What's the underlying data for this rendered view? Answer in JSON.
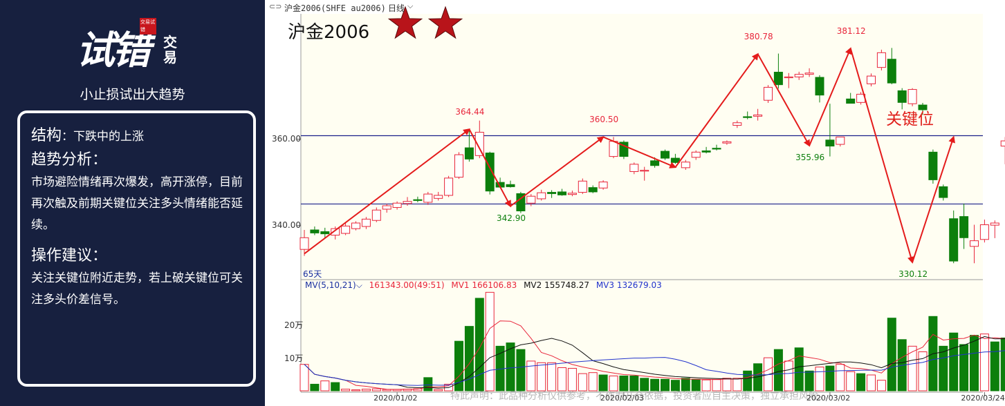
{
  "brand": {
    "logo_main": "试错",
    "logo_sub": "交易",
    "seal_text": "交易试错",
    "slogan": "小止损试出大趋势"
  },
  "analysis": {
    "structure_label": "结构",
    "structure_colon": "：",
    "structure_value": "下跌中的上涨",
    "trend_label": "趋势分析：",
    "trend_text": "市场避险情绪再次爆发，高开涨停，目前再次触及前期关键位关注多头情绪能否延续。",
    "ops_label": "操作建议：",
    "ops_text": "关注关键位附近走势，若上破关键位可关注多头价差信号。"
  },
  "chart_header": {
    "link_icon": "link-icon",
    "title": "沪金2006(SHFE au2006)",
    "period": "日线",
    "dropdown_icon": "chevron-down-icon",
    "big_title": "沪金2006",
    "stars": 2,
    "star_color": "#b8141a",
    "keyword": "关键位",
    "days_label": "65天",
    "disclaimer": "特此声明：此品种分析仅供参考，不作为开仓依据，投资者应自主决策，独立承担风险。"
  },
  "volume_header": {
    "indicator": "MV(5,10,21)",
    "current": "161343.00(49:51)",
    "mv1": "MV1 166106.83",
    "mv2": "MV2 155748.27",
    "mv3": "MV3 132679.03"
  },
  "colors": {
    "panel_bg": "#17203f",
    "up": "#e8253a",
    "down": "#0c7f0c",
    "arrow": "#e41b1b",
    "level_line": "#1a1f8a",
    "chart_bg": "#fffef2",
    "mv1": "#e8253a",
    "mv2": "#111111",
    "mv3": "#2233cc"
  },
  "chart_data": [
    {
      "type": "candlestick",
      "title": "沪金2006",
      "y_ticks": [
        340.0,
        360.0
      ],
      "ylim": [
        327.5,
        389
      ],
      "x_ticks": [
        "2020/01/02",
        "2020/02/03",
        "2020/03/02",
        "2020/03/24"
      ],
      "key_levels": [
        360.8,
        345.0
      ],
      "swing_points": [
        {
          "index": 0,
          "price": 333.5,
          "label": ""
        },
        {
          "index": 16,
          "price": 362.3,
          "label": "364.44"
        },
        {
          "index": 20,
          "price": 344.5,
          "label": "342.90"
        },
        {
          "index": 29,
          "price": 360.5,
          "label": "360.50"
        },
        {
          "index": 36,
          "price": 353.5,
          "label": ""
        },
        {
          "index": 44,
          "price": 379.7,
          "label": "380.78"
        },
        {
          "index": 49,
          "price": 358.5,
          "label": "355.96"
        },
        {
          "index": 53,
          "price": 381.0,
          "label": "381.12"
        },
        {
          "index": 59,
          "price": 331.5,
          "label": "330.12"
        },
        {
          "index": 63,
          "price": 360.5,
          "label": ""
        }
      ],
      "candles": [
        {
          "o": 334.5,
          "h": 339.0,
          "l": 333.0,
          "c": 337.2
        },
        {
          "o": 339.0,
          "h": 339.8,
          "l": 337.8,
          "c": 338.3
        },
        {
          "o": 338.6,
          "h": 339.5,
          "l": 337.0,
          "c": 338.1
        },
        {
          "o": 337.8,
          "h": 339.8,
          "l": 336.8,
          "c": 339.3
        },
        {
          "o": 338.2,
          "h": 340.6,
          "l": 337.8,
          "c": 339.9
        },
        {
          "o": 339.3,
          "h": 341.0,
          "l": 338.9,
          "c": 340.6
        },
        {
          "o": 339.8,
          "h": 342.0,
          "l": 339.2,
          "c": 341.5
        },
        {
          "o": 341.2,
          "h": 344.2,
          "l": 340.8,
          "c": 343.6
        },
        {
          "o": 343.8,
          "h": 345.0,
          "l": 343.0,
          "c": 344.6
        },
        {
          "o": 344.2,
          "h": 345.6,
          "l": 343.7,
          "c": 345.2
        },
        {
          "o": 345.1,
          "h": 346.6,
          "l": 344.6,
          "c": 345.6
        },
        {
          "o": 346.0,
          "h": 346.7,
          "l": 345.4,
          "c": 345.9
        },
        {
          "o": 345.4,
          "h": 347.8,
          "l": 344.8,
          "c": 347.3
        },
        {
          "o": 346.3,
          "h": 347.8,
          "l": 345.8,
          "c": 347.0
        },
        {
          "o": 347.0,
          "h": 351.5,
          "l": 346.6,
          "c": 351.0
        },
        {
          "o": 351.2,
          "h": 357.0,
          "l": 350.8,
          "c": 356.4
        },
        {
          "o": 358.0,
          "h": 362.2,
          "l": 354.8,
          "c": 355.4
        },
        {
          "o": 356.2,
          "h": 364.3,
          "l": 355.6,
          "c": 361.6
        },
        {
          "o": 356.8,
          "h": 357.1,
          "l": 347.2,
          "c": 348.0
        },
        {
          "o": 350.0,
          "h": 351.1,
          "l": 348.7,
          "c": 348.9
        },
        {
          "o": 349.5,
          "h": 350.4,
          "l": 348.8,
          "c": 349.0
        },
        {
          "o": 347.4,
          "h": 347.8,
          "l": 342.9,
          "c": 343.4
        },
        {
          "o": 345.2,
          "h": 347.3,
          "l": 344.5,
          "c": 346.8
        },
        {
          "o": 346.2,
          "h": 348.3,
          "l": 345.8,
          "c": 347.6
        },
        {
          "o": 347.7,
          "h": 348.2,
          "l": 346.4,
          "c": 347.4
        },
        {
          "o": 347.8,
          "h": 348.5,
          "l": 346.9,
          "c": 347.1
        },
        {
          "o": 347.2,
          "h": 348.1,
          "l": 346.8,
          "c": 347.5
        },
        {
          "o": 347.7,
          "h": 350.9,
          "l": 347.3,
          "c": 350.3
        },
        {
          "o": 348.8,
          "h": 349.3,
          "l": 347.5,
          "c": 347.8
        },
        {
          "o": 348.7,
          "h": 350.5,
          "l": 348.3,
          "c": 350.1
        },
        {
          "o": 356.0,
          "h": 360.5,
          "l": 355.6,
          "c": 359.5
        },
        {
          "o": 359.3,
          "h": 359.7,
          "l": 355.4,
          "c": 356.0
        },
        {
          "o": 352.5,
          "h": 354.6,
          "l": 351.9,
          "c": 354.2
        },
        {
          "o": 352.6,
          "h": 353.6,
          "l": 350.4,
          "c": 352.8
        },
        {
          "o": 355.0,
          "h": 355.8,
          "l": 353.4,
          "c": 353.9
        },
        {
          "o": 357.2,
          "h": 357.6,
          "l": 355.2,
          "c": 355.6
        },
        {
          "o": 355.6,
          "h": 356.6,
          "l": 354.3,
          "c": 354.6
        },
        {
          "o": 353.4,
          "h": 355.2,
          "l": 352.9,
          "c": 354.7
        },
        {
          "o": 355.8,
          "h": 357.4,
          "l": 355.2,
          "c": 357.0
        },
        {
          "o": 357.3,
          "h": 358.2,
          "l": 356.7,
          "c": 357.0
        },
        {
          "o": 357.9,
          "h": 358.7,
          "l": 357.4,
          "c": 357.7
        },
        {
          "o": 359.1,
          "h": 359.7,
          "l": 358.7,
          "c": 359.4
        },
        {
          "o": 363.2,
          "h": 364.3,
          "l": 362.6,
          "c": 363.8
        },
        {
          "o": 365.2,
          "h": 366.4,
          "l": 364.6,
          "c": 365.0
        },
        {
          "o": 365.3,
          "h": 367.0,
          "l": 364.3,
          "c": 365.6
        },
        {
          "o": 369.0,
          "h": 372.5,
          "l": 368.4,
          "c": 372.0
        },
        {
          "o": 375.5,
          "h": 379.8,
          "l": 371.7,
          "c": 372.6
        },
        {
          "o": 374.4,
          "h": 375.3,
          "l": 371.8,
          "c": 374.4
        },
        {
          "o": 374.4,
          "h": 375.6,
          "l": 373.7,
          "c": 375.0
        },
        {
          "o": 375.0,
          "h": 376.4,
          "l": 374.4,
          "c": 375.3
        },
        {
          "o": 374.3,
          "h": 374.8,
          "l": 368.5,
          "c": 370.2
        },
        {
          "o": 359.8,
          "h": 368.2,
          "l": 356.0,
          "c": 358.4
        },
        {
          "o": 358.8,
          "h": 360.0,
          "l": 358.3,
          "c": 360.5
        },
        {
          "o": 369.3,
          "h": 370.7,
          "l": 368.6,
          "c": 368.3
        },
        {
          "o": 368.5,
          "h": 370.9,
          "l": 368.0,
          "c": 370.4
        },
        {
          "o": 372.8,
          "h": 375.2,
          "l": 372.2,
          "c": 374.6
        },
        {
          "o": 376.6,
          "h": 380.7,
          "l": 375.9,
          "c": 380.0
        },
        {
          "o": 378.5,
          "h": 381.1,
          "l": 372.7,
          "c": 373.0
        },
        {
          "o": 371.2,
          "h": 371.8,
          "l": 366.9,
          "c": 368.5
        },
        {
          "o": 368.2,
          "h": 371.8,
          "l": 367.6,
          "c": 371.5
        },
        {
          "o": 367.9,
          "h": 368.4,
          "l": 365.6,
          "c": 366.8
        },
        {
          "o": 357.0,
          "h": 357.6,
          "l": 349.7,
          "c": 350.6
        },
        {
          "o": 349.0,
          "h": 349.5,
          "l": 345.8,
          "c": 346.5
        },
        {
          "o": 341.6,
          "h": 343.5,
          "l": 331.3,
          "c": 331.8
        },
        {
          "o": 342.1,
          "h": 345.1,
          "l": 334.6,
          "c": 337.2
        },
        {
          "o": 335.2,
          "h": 340.2,
          "l": 331.3,
          "c": 336.5
        },
        {
          "o": 336.8,
          "h": 341.4,
          "l": 336.1,
          "c": 340.2
        },
        {
          "o": 340.1,
          "h": 341.2,
          "l": 337.1,
          "c": 340.6
        },
        {
          "o": 358.4,
          "h": 360.5,
          "l": 354.2,
          "c": 359.6
        }
      ]
    },
    {
      "type": "bar",
      "title": "MV(5,10,21)",
      "y_ticks_label": [
        "10万",
        "20万"
      ],
      "y_ticks": [
        100000,
        200000
      ],
      "ylim": [
        0,
        305000
      ],
      "volumes": [
        80000,
        20000,
        30000,
        25000,
        5000,
        3000,
        5000,
        6000,
        4000,
        4000,
        5000,
        6000,
        40000,
        4000,
        20000,
        150000,
        195000,
        280000,
        298000,
        135000,
        145000,
        125000,
        90000,
        85000,
        85000,
        70000,
        68000,
        52000,
        55000,
        48000,
        45000,
        45000,
        45000,
        38000,
        35000,
        35000,
        32000,
        38000,
        35000,
        33000,
        34000,
        38000,
        38000,
        60000,
        82000,
        100000,
        125000,
        90000,
        130000,
        60000,
        72000,
        75000,
        80000,
        58000,
        52000,
        48000,
        32000,
        220000,
        155000,
        135000,
        118000,
        225000,
        135000,
        175000,
        140000,
        168000,
        172000,
        148000,
        160000
      ],
      "vol_up": [
        true,
        false,
        true,
        false,
        true,
        true,
        true,
        true,
        true,
        true,
        true,
        true,
        false,
        true,
        true,
        false,
        false,
        false,
        true,
        false,
        false,
        false,
        true,
        true,
        true,
        true,
        true,
        true,
        true,
        false,
        true,
        false,
        false,
        false,
        false,
        false,
        false,
        false,
        false,
        true,
        true,
        true,
        true,
        false,
        false,
        true,
        false,
        true,
        false,
        false,
        true,
        false,
        true,
        true,
        false,
        true,
        true,
        false,
        false,
        true,
        true,
        false,
        false,
        false,
        false,
        false,
        true,
        false,
        false
      ],
      "series": [
        {
          "name": "MV1",
          "values": []
        },
        {
          "name": "MV2",
          "values": []
        },
        {
          "name": "MV3",
          "values": []
        }
      ]
    }
  ]
}
